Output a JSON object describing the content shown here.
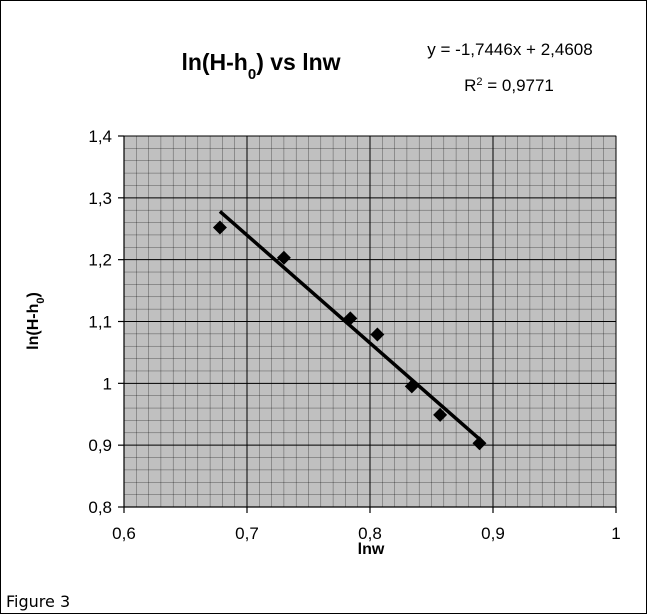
{
  "chart_data": {
    "type": "scatter",
    "title": {
      "main": "ln(H-h",
      "sub": "0",
      "tail": ") vs lnw"
    },
    "xlabel": "lnw",
    "ylabel": {
      "main": "ln(H-h",
      "sub": "0",
      "tail": ")"
    },
    "xlim": [
      0.6,
      1.0
    ],
    "ylim": [
      0.8,
      1.4
    ],
    "x_ticks": [
      0.6,
      0.7,
      0.8,
      0.9,
      1.0
    ],
    "x_tick_labels": [
      "0,6",
      "0,7",
      "0,8",
      "0,9",
      "1"
    ],
    "y_ticks": [
      0.8,
      0.9,
      1.0,
      1.1,
      1.2,
      1.3,
      1.4
    ],
    "y_tick_labels": [
      "0,8",
      "0,9",
      "1",
      "1,1",
      "1,2",
      "1,3",
      "1,4"
    ],
    "grid": true,
    "plot_background": "#c0c0c0",
    "marker_color": "#000000",
    "series": [
      {
        "x": [
          0.678,
          0.73,
          0.784,
          0.806,
          0.834,
          0.857,
          0.889
        ],
        "y": [
          1.252,
          1.203,
          1.105,
          1.079,
          0.995,
          0.949,
          0.903
        ]
      }
    ],
    "trendline": {
      "slope": -1.7446,
      "intercept": 2.4608,
      "x_range": [
        0.678,
        0.889
      ],
      "equation_label": "y = -1,7446x + 2,4608",
      "r2_label": {
        "prefix": "R",
        "sup": "2",
        "suffix": " = 0,9771"
      }
    }
  },
  "caption": "Figure 3"
}
